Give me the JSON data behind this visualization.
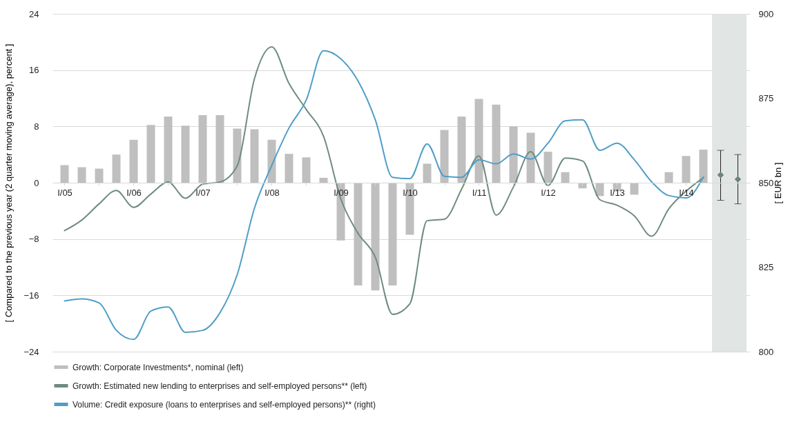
{
  "chart_data": {
    "type": "bar",
    "ylabel": "[ Compared to the previous year (2 quarter moving average), percent ]",
    "y2label": "[ EUR bn ]",
    "categories": [
      "I/05",
      null,
      null,
      null,
      "I/06",
      null,
      null,
      null,
      "I/07",
      null,
      null,
      null,
      "I/08",
      null,
      null,
      null,
      "I/09",
      null,
      null,
      null,
      "I/10",
      null,
      null,
      null,
      "I/11",
      null,
      null,
      null,
      "I/12",
      null,
      null,
      null,
      "I/13",
      null,
      null,
      null,
      "I/14",
      null,
      null,
      null
    ],
    "ylim": [
      -24,
      24
    ],
    "yticks": [
      -24,
      -16,
      -8,
      0,
      8,
      16,
      24
    ],
    "y2lim": [
      800,
      900
    ],
    "y2ticks": [
      800,
      825,
      850,
      875,
      900
    ],
    "grid": "y",
    "legend": "bottom",
    "series": [
      {
        "name": "Growth: Corporate Investments*, nominal (left)",
        "color": "#bfbfbf",
        "values": [
          2.5,
          2.2,
          2.0,
          4.0,
          6.1,
          8.2,
          9.4,
          8.1,
          9.6,
          9.6,
          7.7,
          7.6,
          6.1,
          4.1,
          3.6,
          0.7,
          -8.2,
          -14.6,
          -15.3,
          -14.6,
          -7.4,
          2.7,
          7.5,
          9.4,
          11.9,
          11.1,
          8.0,
          7.1,
          4.4,
          1.5,
          -0.8,
          -1.9,
          -1.2,
          -1.7,
          null,
          1.5,
          3.8,
          4.7,
          null,
          null
        ]
      },
      {
        "name": "Growth: Estimated new lending to enterprises and self-employed persons** (left)",
        "type": "line",
        "color": "#6f8c7e",
        "values": [
          -6.8,
          -5.3,
          -3.0,
          -1.1,
          -3.5,
          -1.6,
          0.1,
          -2.2,
          -0.2,
          0.1,
          2.4,
          14.8,
          19.3,
          14.1,
          10.4,
          6.6,
          -2.3,
          -7.2,
          -10.6,
          -18.7,
          -17.2,
          -5.4,
          -5.2,
          -0.9,
          3.8,
          -4.6,
          -0.6,
          4.4,
          -0.4,
          3.5,
          3.1,
          -2.4,
          -3.2,
          -4.7,
          -7.6,
          -3.7,
          -1.2,
          0.7,
          null,
          null
        ]
      },
      {
        "name": "Volume: Credit exposure (loans to enterprises and self-employed persons)** (right)",
        "type": "line",
        "axis": "y2",
        "color": "#4f9ec7",
        "values": [
          815.0,
          815.6,
          814.4,
          806.3,
          803.6,
          812.0,
          813.2,
          805.7,
          806.3,
          811.5,
          822.8,
          842.5,
          855.1,
          866.2,
          874.5,
          889.1,
          886.7,
          880.1,
          868.6,
          851.6,
          851.2,
          861.5,
          851.9,
          851.6,
          856.8,
          855.6,
          858.5,
          857.0,
          861.7,
          868.3,
          868.6,
          859.6,
          861.7,
          856.8,
          850.3,
          846.2,
          845.5,
          851.7,
          null,
          null
        ]
      },
      {
        "type": "scatter",
        "marker": "diamond",
        "color": "#6a8577",
        "values": [
          null,
          null,
          null,
          null,
          null,
          null,
          null,
          null,
          null,
          null,
          null,
          null,
          null,
          null,
          null,
          null,
          null,
          null,
          null,
          null,
          null,
          null,
          null,
          null,
          null,
          null,
          null,
          null,
          null,
          null,
          null,
          null,
          null,
          null,
          null,
          null,
          null,
          null,
          1.1,
          0.5
        ],
        "errors": [
          null,
          null,
          null,
          null,
          null,
          null,
          null,
          null,
          null,
          null,
          null,
          null,
          null,
          null,
          null,
          null,
          null,
          null,
          null,
          null,
          null,
          null,
          null,
          null,
          null,
          null,
          null,
          null,
          null,
          null,
          null,
          null,
          null,
          null,
          null,
          null,
          null,
          null,
          [
            -2.5,
            4.6
          ],
          [
            -3.0,
            4.0
          ]
        ]
      }
    ]
  }
}
